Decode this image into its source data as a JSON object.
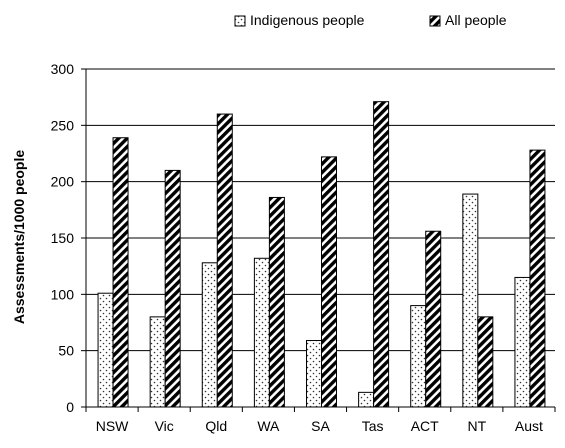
{
  "chart_data": {
    "type": "bar",
    "title": "",
    "xlabel": "",
    "ylabel": "Assessments/1000 people",
    "ylim": [
      0,
      300
    ],
    "yticks": [
      0,
      50,
      100,
      150,
      200,
      250,
      300
    ],
    "categories": [
      "NSW",
      "Vic",
      "Qld",
      "WA",
      "SA",
      "Tas",
      "ACT",
      "NT",
      "Aust"
    ],
    "series": [
      {
        "name": "Indigenous people",
        "pattern": "dots",
        "values": [
          101,
          80,
          128,
          132,
          59,
          13,
          90,
          189,
          115
        ]
      },
      {
        "name": "All people",
        "pattern": "diagonal-stripes",
        "values": [
          239,
          210,
          260,
          186,
          222,
          271,
          156,
          80,
          228
        ]
      }
    ],
    "grid": true,
    "legend_position": "top"
  }
}
